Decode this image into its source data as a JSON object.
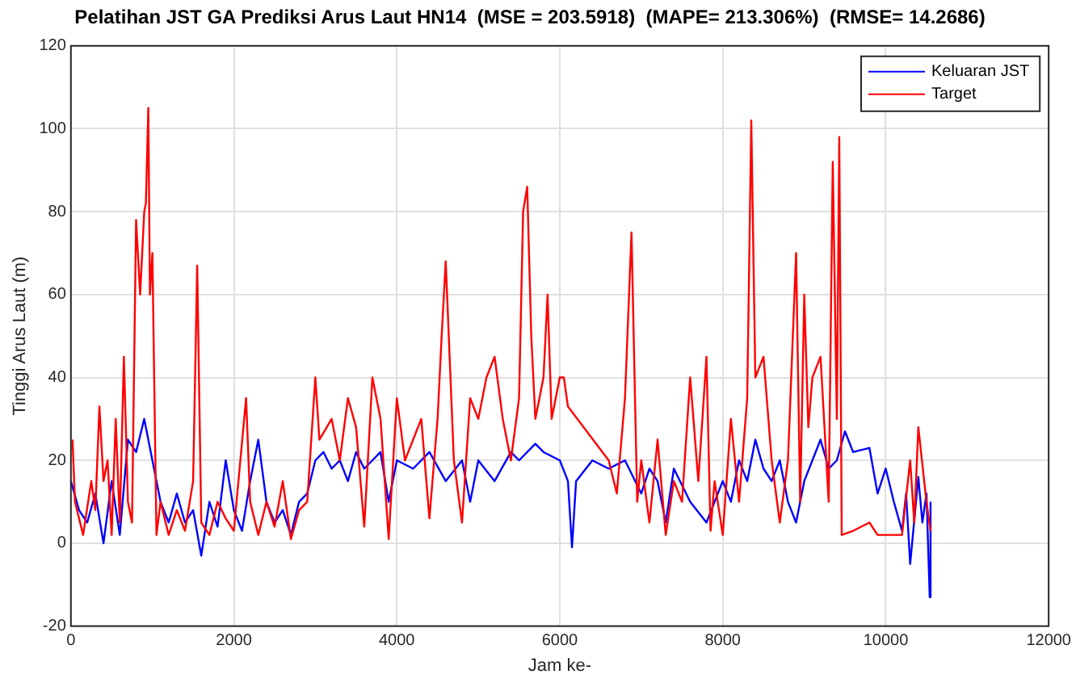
{
  "chart_data": {
    "type": "line",
    "title": "Pelatihan JST GA Prediksi Arus Laut HN14  (MSE = 203.5918)  (MAPE= 213.306%)  (RMSE= 14.2686)",
    "xlabel": "Jam ke-",
    "ylabel": "Tinggi Arus Laut (m)",
    "xlim": [
      0,
      12000
    ],
    "xticks": [
      0,
      2000,
      4000,
      6000,
      8000,
      10000,
      12000
    ],
    "ylim": [
      -20,
      120
    ],
    "yticks": [
      -20,
      0,
      20,
      40,
      60,
      80,
      100,
      120
    ],
    "grid": true,
    "legend": "top right",
    "marker": "none",
    "line_style": "solid",
    "series": [
      {
        "name": "Keluaran JST",
        "color": "#0000ff",
        "x": [
          0,
          100,
          200,
          300,
          400,
          500,
          600,
          700,
          800,
          900,
          1000,
          1100,
          1200,
          1300,
          1400,
          1500,
          1600,
          1700,
          1800,
          1900,
          2000,
          2100,
          2200,
          2300,
          2400,
          2500,
          2600,
          2700,
          2800,
          2900,
          3000,
          3100,
          3200,
          3300,
          3400,
          3500,
          3600,
          3700,
          3800,
          3900,
          4000,
          4200,
          4400,
          4600,
          4800,
          4900,
          5000,
          5200,
          5400,
          5500,
          5700,
          5800,
          6000,
          6100,
          6150,
          6200,
          6400,
          6600,
          6800,
          7000,
          7100,
          7200,
          7300,
          7400,
          7600,
          7800,
          8000,
          8100,
          8200,
          8300,
          8400,
          8500,
          8600,
          8700,
          8800,
          8900,
          9000,
          9100,
          9200,
          9300,
          9400,
          9500,
          9600,
          9800,
          9900,
          10000,
          10100,
          10200,
          10250,
          10300,
          10400,
          10450,
          10500,
          10540,
          10550
        ],
        "values": [
          15,
          8,
          5,
          12,
          0,
          15,
          2,
          25,
          22,
          30,
          20,
          10,
          5,
          12,
          5,
          8,
          -3,
          10,
          4,
          20,
          8,
          3,
          15,
          25,
          10,
          5,
          8,
          2,
          10,
          12,
          20,
          22,
          18,
          20,
          15,
          22,
          18,
          20,
          22,
          10,
          20,
          18,
          22,
          15,
          20,
          10,
          20,
          15,
          22,
          20,
          24,
          22,
          20,
          15,
          -1,
          15,
          20,
          18,
          20,
          12,
          18,
          15,
          5,
          18,
          10,
          5,
          15,
          10,
          20,
          15,
          25,
          18,
          15,
          20,
          10,
          5,
          15,
          20,
          25,
          18,
          20,
          27,
          22,
          23,
          12,
          18,
          10,
          3,
          12,
          -5,
          16,
          5,
          12,
          -13,
          10
        ]
      },
      {
        "name": "Target",
        "color": "#ff0000",
        "x": [
          20,
          50,
          150,
          250,
          300,
          350,
          400,
          450,
          500,
          550,
          600,
          650,
          700,
          750,
          800,
          850,
          900,
          920,
          950,
          970,
          1000,
          1050,
          1100,
          1200,
          1300,
          1400,
          1500,
          1550,
          1600,
          1700,
          1800,
          1900,
          2000,
          2150,
          2200,
          2300,
          2400,
          2500,
          2600,
          2700,
          2800,
          2900,
          3000,
          3050,
          3200,
          3300,
          3400,
          3500,
          3600,
          3700,
          3800,
          3900,
          4000,
          4100,
          4200,
          4300,
          4400,
          4500,
          4550,
          4600,
          4700,
          4800,
          4900,
          5000,
          5100,
          5200,
          5300,
          5400,
          5500,
          5550,
          5600,
          5650,
          5700,
          5800,
          5850,
          5900,
          6000,
          6050,
          6100,
          6600,
          6700,
          6800,
          6880,
          6950,
          7000,
          7100,
          7200,
          7300,
          7400,
          7500,
          7600,
          7700,
          7800,
          7850,
          7900,
          8000,
          8100,
          8200,
          8300,
          8350,
          8400,
          8500,
          8600,
          8700,
          8800,
          8900,
          8950,
          9000,
          9050,
          9100,
          9200,
          9300,
          9350,
          9400,
          9430,
          9460,
          9600,
          9800,
          9900,
          10200,
          10300,
          10350,
          10400,
          10500,
          10550
        ],
        "values": [
          25,
          10,
          2,
          15,
          8,
          33,
          15,
          20,
          2,
          30,
          5,
          45,
          10,
          5,
          78,
          60,
          80,
          82,
          105,
          60,
          70,
          2,
          10,
          2,
          8,
          3,
          15,
          67,
          5,
          2,
          10,
          6,
          3,
          35,
          10,
          2,
          10,
          4,
          15,
          1,
          8,
          10,
          40,
          25,
          30,
          20,
          35,
          28,
          4,
          40,
          30,
          1,
          35,
          20,
          25,
          30,
          6,
          30,
          50,
          68,
          20,
          5,
          35,
          30,
          40,
          45,
          30,
          20,
          35,
          80,
          86,
          50,
          30,
          40,
          60,
          30,
          40,
          40,
          33,
          20,
          12,
          35,
          75,
          10,
          20,
          5,
          25,
          2,
          15,
          10,
          40,
          15,
          45,
          3,
          15,
          2,
          30,
          10,
          35,
          102,
          40,
          45,
          20,
          5,
          20,
          70,
          10,
          60,
          28,
          40,
          45,
          10,
          92,
          30,
          98,
          2,
          3,
          5,
          2,
          2,
          20,
          5,
          28,
          10,
          3
        ]
      }
    ]
  }
}
